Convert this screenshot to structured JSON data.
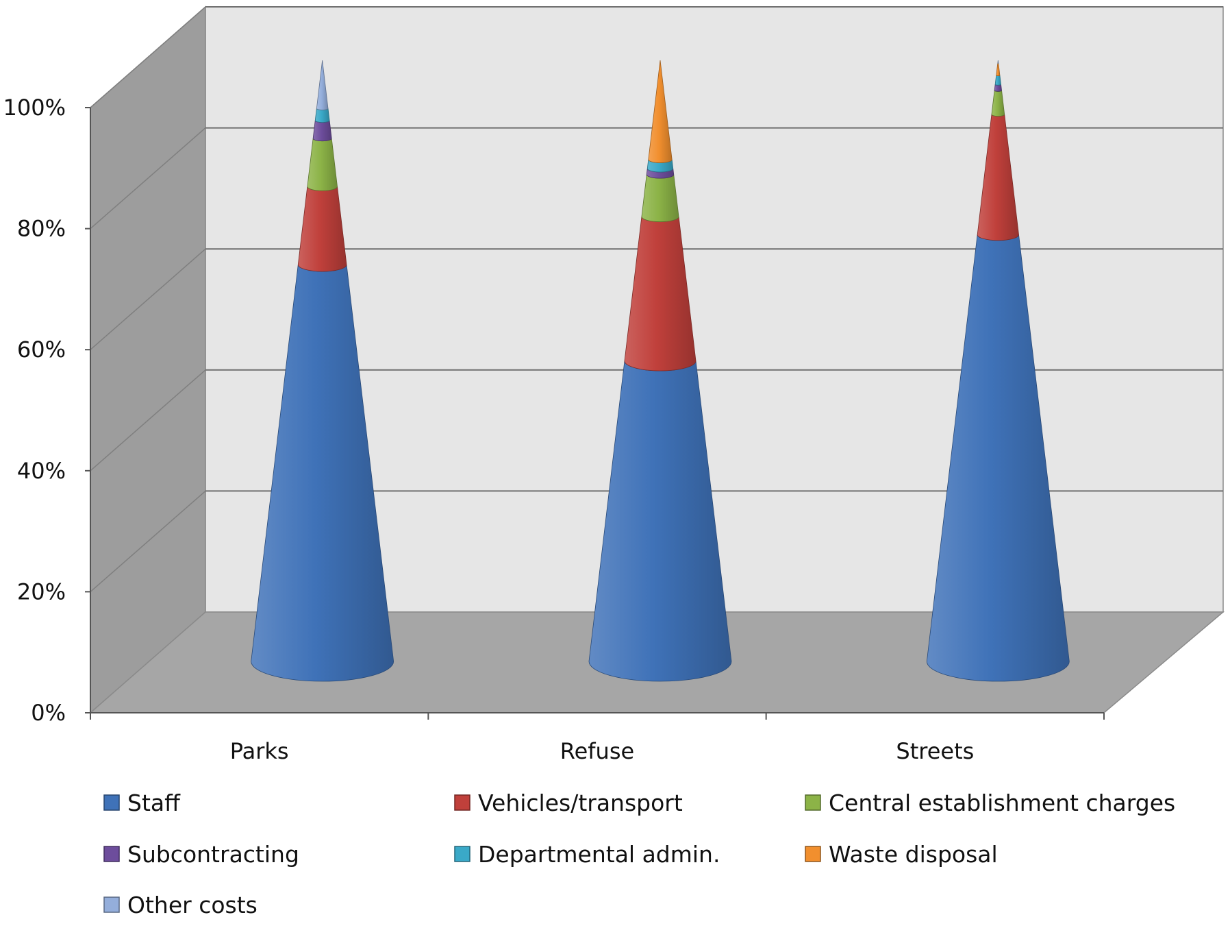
{
  "chart_data": {
    "type": "stacked-cone",
    "categories": [
      "Parks",
      "Refuse",
      "Streets"
    ],
    "y_ticks": [
      "0%",
      "20%",
      "40%",
      "60%",
      "80%",
      "100%"
    ],
    "ylim": [
      0,
      100
    ],
    "grid": true,
    "legend_position": "bottom",
    "series": [
      {
        "name": "Staff",
        "color": "#3f72b8",
        "values": [
          66,
          50,
          71
        ]
      },
      {
        "name": "Vehicles/transport",
        "color": "#c0403b",
        "values": [
          13,
          24,
          20
        ]
      },
      {
        "name": "Central establishment charges",
        "color": "#8cb347",
        "values": [
          8,
          7,
          4
        ]
      },
      {
        "name": "Subcontracting",
        "color": "#6d4d9c",
        "values": [
          3,
          1,
          1
        ]
      },
      {
        "name": "Departmental admin.",
        "color": "#3aa9c8",
        "values": [
          2,
          1.5,
          1.5
        ]
      },
      {
        "name": "Waste disposal",
        "color": "#f18f2e",
        "values": [
          0,
          16.5,
          2
        ]
      },
      {
        "name": "Other costs",
        "color": "#94aedb",
        "values": [
          8,
          0,
          0.5
        ]
      }
    ]
  }
}
